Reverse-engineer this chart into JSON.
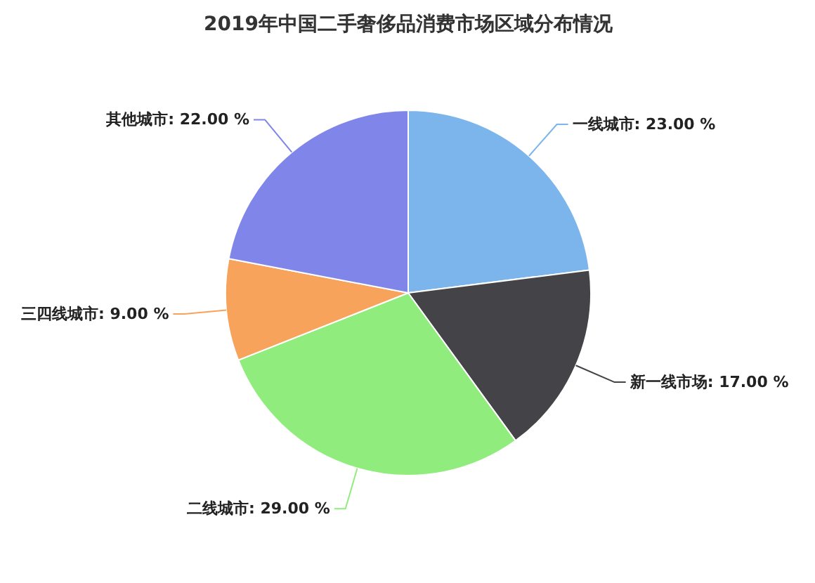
{
  "chart_data": {
    "type": "pie",
    "title": "2019年中国二手奢侈品消费市场区域分布情况",
    "categories": [
      "一线城市",
      "新一线市场",
      "二线城市",
      "三四线城市",
      "其他城市"
    ],
    "values": [
      23,
      17,
      29,
      9,
      22
    ],
    "colors": [
      "#7cb5ec",
      "#434348",
      "#90ed7d",
      "#f7a35c",
      "#8085e9"
    ],
    "value_labels": [
      "23.00 %",
      "17.00 %",
      "29.00 %",
      "9.00 %",
      "22.00 %"
    ]
  }
}
